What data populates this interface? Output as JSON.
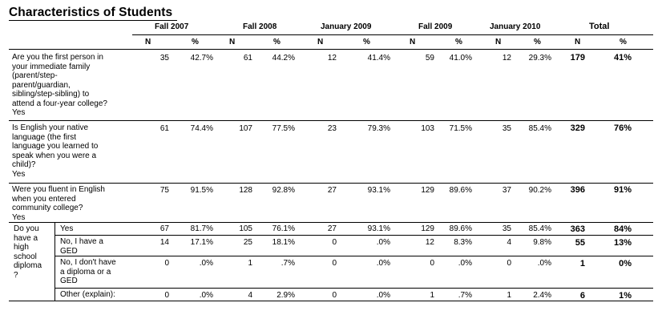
{
  "title": "Characteristics of Students",
  "header": {
    "groups": [
      "Fall 2007",
      "Fall 2008",
      "January 2009",
      "Fall 2009",
      "January 2010",
      "Total"
    ],
    "n_label": "N",
    "pct_label": "%"
  },
  "questions": [
    {
      "text": "Are you the first person in\nyour immediate family\n(parent/step-\nparent/guardian,\nsibling/step-sibling) to\nattend a four-year college?\nYes",
      "values": [
        "35",
        "42.7%",
        "61",
        "44.2%",
        "12",
        "41.4%",
        "59",
        "41.0%",
        "12",
        "29.3%"
      ],
      "total_n": "179",
      "total_pct": "41%"
    },
    {
      "text": "Is English your native\nlanguage (the first\nlanguage you learned to\nspeak when you were a\nchild)?\nYes",
      "values": [
        "61",
        "74.4%",
        "107",
        "77.5%",
        "23",
        "79.3%",
        "103",
        "71.5%",
        "35",
        "85.4%"
      ],
      "total_n": "329",
      "total_pct": "76%"
    },
    {
      "text": "Were you fluent in English\nwhen you entered\ncommunity college?\nYes",
      "values": [
        "75",
        "91.5%",
        "128",
        "92.8%",
        "27",
        "93.1%",
        "129",
        "89.6%",
        "37",
        "90.2%"
      ],
      "total_n": "396",
      "total_pct": "91%"
    }
  ],
  "diploma": {
    "question": "Do you\nhave a\nhigh\nschool\ndiploma\n?",
    "rows": [
      {
        "label": "Yes",
        "values": [
          "67",
          "81.7%",
          "105",
          "76.1%",
          "27",
          "93.1%",
          "129",
          "89.6%",
          "35",
          "85.4%"
        ],
        "total_n": "363",
        "total_pct": "84%"
      },
      {
        "label": "No, I have a\nGED",
        "values": [
          "14",
          "17.1%",
          "25",
          "18.1%",
          "0",
          ".0%",
          "12",
          "8.3%",
          "4",
          "9.8%"
        ],
        "total_n": "55",
        "total_pct": "13%"
      },
      {
        "label": "No, I don't have\na diploma or a\nGED",
        "values": [
          "0",
          ".0%",
          "1",
          ".7%",
          "0",
          ".0%",
          "0",
          ".0%",
          "0",
          ".0%"
        ],
        "total_n": "1",
        "total_pct": "0%"
      },
      {
        "label": "Other (explain):",
        "values": [
          "0",
          ".0%",
          "4",
          "2.9%",
          "0",
          ".0%",
          "1",
          ".7%",
          "1",
          "2.4%"
        ],
        "total_n": "6",
        "total_pct": "1%"
      }
    ]
  }
}
